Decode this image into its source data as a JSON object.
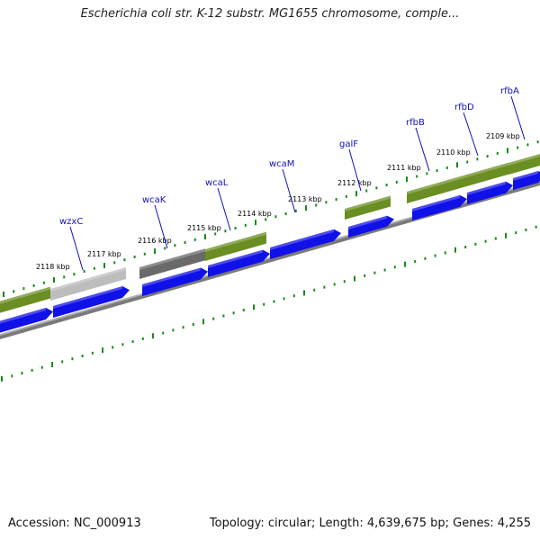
{
  "title": "Escherichia coli str. K-12 substr. MG1655 chromosome, comple...",
  "accession": "Accession: NC_000913",
  "summary": "Topology: circular; Length: 4,639,675 bp; Genes: 4,255",
  "colors": {
    "gene_blue": "#1010e8",
    "cog_green": "#6b8e23",
    "cog_grey_light": "#bdbdbd",
    "cog_grey_dark": "#6a6a6a",
    "backbone": "#808080",
    "tick_green": "#1a8a1a",
    "label_blue": "#1111bb"
  },
  "ticks": [
    {
      "label": "2118 kbp"
    },
    {
      "label": "2117 kbp"
    },
    {
      "label": "2116 kbp"
    },
    {
      "label": "2115 kbp"
    },
    {
      "label": "2114 kbp"
    },
    {
      "label": "2113 kbp"
    },
    {
      "label": "2112 kbp"
    },
    {
      "label": "2111 kbp"
    },
    {
      "label": "2110 kbp"
    },
    {
      "label": "2109 kbp"
    }
  ],
  "genes": [
    {
      "name": "wzxC"
    },
    {
      "name": "wcaK"
    },
    {
      "name": "wcaL"
    },
    {
      "name": "wcaM"
    },
    {
      "name": "galF"
    },
    {
      "name": "rfbB"
    },
    {
      "name": "rfbD"
    },
    {
      "name": "rfbA"
    }
  ]
}
